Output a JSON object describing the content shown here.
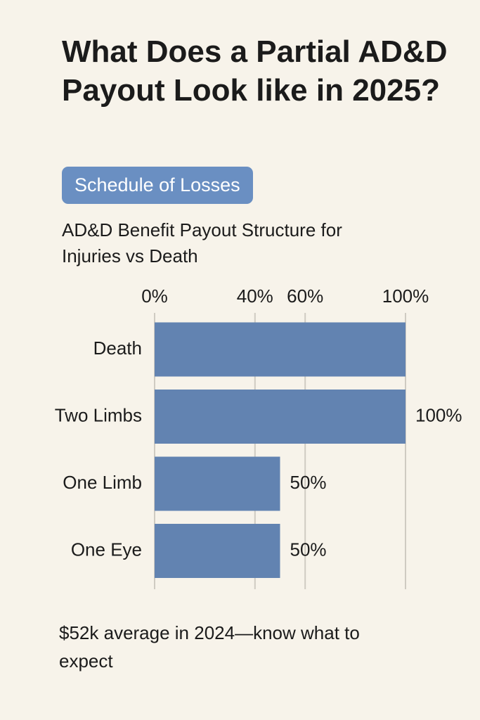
{
  "chart_data": {
    "type": "bar",
    "orientation": "horizontal",
    "title": "What Does a Partial AD&D Payout Look like in 2025?",
    "badge": "Schedule of Losses",
    "subtitle": "AD&D Benefit Payout Structure for Injuries vs Death",
    "categories": [
      "Death",
      "Two Limbs",
      "One Limb",
      "One Eye"
    ],
    "values": [
      100,
      100,
      50,
      50
    ],
    "value_labels": [
      null,
      "100%",
      "50%",
      "50%"
    ],
    "color": "#6283b1",
    "xlim": [
      0,
      100
    ],
    "xticks": [
      {
        "value": 0,
        "label": "0%"
      },
      {
        "value": 40,
        "label": "40%"
      },
      {
        "value": 60,
        "label": "60%"
      },
      {
        "value": 100,
        "label": "100%"
      }
    ],
    "grid": true,
    "footnote": "$52k average in 2024—know what to expect"
  }
}
